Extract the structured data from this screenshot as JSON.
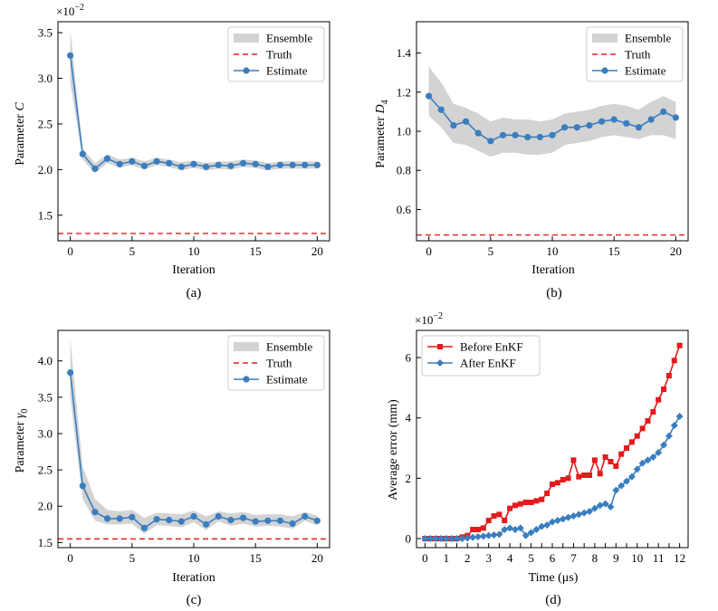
{
  "colors": {
    "estimate": "#3a7ebf",
    "ensemble": "#d3d3d3",
    "truth": "#e02020",
    "before": "#e41a1c",
    "after": "#3a7ebf"
  },
  "chart_data": [
    {
      "type": "line",
      "panel_label": "(a)",
      "xlabel": "Iteration",
      "ylabel_main": "Parameter ",
      "ylabel_sym": "C",
      "ylabel_sub": "",
      "scale_base": "×10",
      "scale_exp": "−2",
      "xlim": [
        -1,
        21
      ],
      "ylim": [
        1.22,
        3.62
      ],
      "xticks": [
        0,
        5,
        10,
        15,
        20
      ],
      "xtick_labels": [
        "0",
        "5",
        "10",
        "15",
        "20"
      ],
      "yticks": [
        1.5,
        2.0,
        2.5,
        3.0,
        3.5
      ],
      "ytick_labels": [
        "1.5",
        "2.0",
        "2.5",
        "3.0",
        "3.5"
      ],
      "legend": [
        "Ensemble",
        "Truth",
        "Estimate"
      ],
      "truth": 1.3,
      "x": [
        0,
        1,
        2,
        3,
        4,
        5,
        6,
        7,
        8,
        9,
        10,
        11,
        12,
        13,
        14,
        15,
        16,
        17,
        18,
        19,
        20
      ],
      "estimate": [
        3.25,
        2.17,
        2.01,
        2.12,
        2.06,
        2.09,
        2.04,
        2.09,
        2.07,
        2.03,
        2.06,
        2.03,
        2.05,
        2.04,
        2.07,
        2.06,
        2.03,
        2.05,
        2.05,
        2.05,
        2.05
      ],
      "ensemble_upper": [
        3.54,
        2.23,
        2.07,
        2.17,
        2.11,
        2.13,
        2.09,
        2.13,
        2.11,
        2.08,
        2.1,
        2.07,
        2.09,
        2.09,
        2.11,
        2.1,
        2.07,
        2.09,
        2.09,
        2.09,
        2.09
      ],
      "ensemble_lower": [
        2.95,
        2.11,
        1.96,
        2.07,
        2.02,
        2.05,
        2.0,
        2.05,
        2.03,
        1.99,
        2.02,
        1.99,
        2.01,
        2.0,
        2.03,
        2.02,
        1.99,
        2.01,
        2.01,
        2.01,
        2.01
      ]
    },
    {
      "type": "line",
      "panel_label": "(b)",
      "xlabel": "Iteration",
      "ylabel_main": "Parameter ",
      "ylabel_sym": "D",
      "ylabel_sub": "4",
      "scale_base": "",
      "scale_exp": "",
      "xlim": [
        -1,
        21
      ],
      "ylim": [
        0.44,
        1.56
      ],
      "xticks": [
        0,
        5,
        10,
        15,
        20
      ],
      "xtick_labels": [
        "0",
        "5",
        "10",
        "15",
        "20"
      ],
      "yticks": [
        0.6,
        0.8,
        1.0,
        1.2,
        1.4
      ],
      "ytick_labels": [
        "0.6",
        "0.8",
        "1.0",
        "1.2",
        "1.4"
      ],
      "legend": [
        "Ensemble",
        "Truth",
        "Estimate"
      ],
      "truth": 0.47,
      "x": [
        0,
        1,
        2,
        3,
        4,
        5,
        6,
        7,
        8,
        9,
        10,
        11,
        12,
        13,
        14,
        15,
        16,
        17,
        18,
        19,
        20
      ],
      "estimate": [
        1.18,
        1.11,
        1.03,
        1.05,
        0.99,
        0.95,
        0.98,
        0.98,
        0.97,
        0.97,
        0.98,
        1.02,
        1.02,
        1.03,
        1.05,
        1.06,
        1.04,
        1.02,
        1.06,
        1.1,
        1.07
      ],
      "ensemble_upper": [
        1.33,
        1.25,
        1.14,
        1.12,
        1.09,
        1.05,
        1.07,
        1.06,
        1.06,
        1.05,
        1.06,
        1.09,
        1.1,
        1.11,
        1.13,
        1.14,
        1.13,
        1.11,
        1.15,
        1.18,
        1.15
      ],
      "ensemble_lower": [
        1.08,
        1.02,
        0.94,
        0.93,
        0.9,
        0.87,
        0.89,
        0.89,
        0.88,
        0.88,
        0.89,
        0.93,
        0.94,
        0.95,
        0.97,
        0.98,
        0.97,
        0.96,
        0.98,
        0.98,
        0.96
      ]
    },
    {
      "type": "line",
      "panel_label": "(c)",
      "xlabel": "Iteration",
      "ylabel_main": "Parameter ",
      "ylabel_sym": "γ",
      "ylabel_sub": "0",
      "scale_base": "",
      "scale_exp": "",
      "xlim": [
        -1,
        21
      ],
      "ylim": [
        1.43,
        4.42
      ],
      "xticks": [
        0,
        5,
        10,
        15,
        20
      ],
      "xtick_labels": [
        "0",
        "5",
        "10",
        "15",
        "20"
      ],
      "yticks": [
        1.5,
        2.0,
        2.5,
        3.0,
        3.5,
        4.0
      ],
      "ytick_labels": [
        "1.5",
        "2.0",
        "2.5",
        "3.0",
        "3.5",
        "4.0"
      ],
      "legend": [
        "Ensemble",
        "Truth",
        "Estimate"
      ],
      "truth": 1.55,
      "x": [
        0,
        1,
        2,
        3,
        4,
        5,
        6,
        7,
        8,
        9,
        10,
        11,
        12,
        13,
        14,
        15,
        16,
        17,
        18,
        19,
        20
      ],
      "estimate": [
        3.84,
        2.28,
        1.92,
        1.83,
        1.83,
        1.85,
        1.7,
        1.82,
        1.81,
        1.79,
        1.86,
        1.75,
        1.86,
        1.81,
        1.84,
        1.79,
        1.8,
        1.8,
        1.76,
        1.86,
        1.8
      ],
      "ensemble_upper": [
        4.3,
        2.55,
        2.1,
        1.95,
        1.93,
        1.95,
        1.84,
        1.91,
        1.9,
        1.89,
        1.94,
        1.86,
        1.93,
        1.9,
        1.92,
        1.88,
        1.89,
        1.89,
        1.86,
        1.92,
        1.87
      ],
      "ensemble_lower": [
        3.5,
        2.1,
        1.8,
        1.75,
        1.75,
        1.76,
        1.62,
        1.74,
        1.73,
        1.71,
        1.78,
        1.67,
        1.79,
        1.73,
        1.76,
        1.72,
        1.73,
        1.72,
        1.69,
        1.8,
        1.73
      ]
    },
    {
      "type": "line",
      "panel_label": "(d)",
      "xlabel": "Time (μs)",
      "ylabel_main": "Average error (mm)",
      "ylabel_sym": "",
      "ylabel_sub": "",
      "scale_base": "×10",
      "scale_exp": "−2",
      "xlim": [
        -0.4,
        12.4
      ],
      "ylim": [
        -0.3,
        6.9
      ],
      "xticks": [
        0,
        0.5,
        1,
        1.5,
        2,
        2.5,
        3,
        3.5,
        4,
        4.5,
        5,
        5.5,
        6,
        6.5,
        7,
        7.5,
        8,
        8.5,
        9,
        9.5,
        10,
        10.5,
        11,
        11.5,
        12
      ],
      "xtick_labels": [
        "0",
        "",
        "1",
        "",
        "2",
        "",
        "3",
        "",
        "4",
        "",
        "5",
        "",
        "6",
        "",
        "7",
        "",
        "8",
        "",
        "9",
        "",
        "10",
        "",
        "11",
        "",
        "12"
      ],
      "yticks": [
        0,
        2,
        4,
        6
      ],
      "ytick_labels": [
        "0",
        "2",
        "4",
        "6"
      ],
      "legend": [
        "Before EnKF",
        "After EnKF"
      ],
      "series": [
        {
          "name": "Before EnKF",
          "x": [
            0,
            0.25,
            0.5,
            0.75,
            1,
            1.25,
            1.5,
            1.75,
            2,
            2.25,
            2.5,
            2.75,
            3,
            3.25,
            3.5,
            3.75,
            4,
            4.25,
            4.5,
            4.75,
            5,
            5.25,
            5.5,
            5.75,
            6,
            6.25,
            6.5,
            6.75,
            7,
            7.25,
            7.5,
            7.75,
            8,
            8.25,
            8.5,
            8.75,
            9,
            9.25,
            9.5,
            9.75,
            10,
            10.25,
            10.5,
            10.75,
            11,
            11.25,
            11.5,
            11.75,
            12
          ],
          "values": [
            0,
            0,
            0,
            0,
            0,
            0,
            0,
            0.05,
            0.1,
            0.3,
            0.3,
            0.35,
            0.6,
            0.75,
            0.8,
            0.6,
            1.0,
            1.1,
            1.15,
            1.2,
            1.2,
            1.25,
            1.3,
            1.5,
            1.8,
            1.85,
            1.95,
            2.0,
            2.6,
            2.05,
            2.1,
            2.1,
            2.6,
            2.15,
            2.7,
            2.55,
            2.4,
            2.8,
            3.0,
            3.2,
            3.4,
            3.65,
            3.9,
            4.2,
            4.6,
            4.95,
            5.4,
            5.9,
            6.4
          ]
        },
        {
          "name": "After EnKF",
          "x": [
            0,
            0.25,
            0.5,
            0.75,
            1,
            1.25,
            1.5,
            1.75,
            2,
            2.25,
            2.5,
            2.75,
            3,
            3.25,
            3.5,
            3.75,
            4,
            4.25,
            4.5,
            4.75,
            5,
            5.25,
            5.5,
            5.75,
            6,
            6.25,
            6.5,
            6.75,
            7,
            7.25,
            7.5,
            7.75,
            8,
            8.25,
            8.5,
            8.75,
            9,
            9.25,
            9.5,
            9.75,
            10,
            10.25,
            10.5,
            10.75,
            11,
            11.25,
            11.5,
            11.75,
            12
          ],
          "values": [
            0,
            0,
            0,
            0,
            0,
            0,
            0,
            0,
            0.02,
            0.04,
            0.06,
            0.08,
            0.1,
            0.12,
            0.14,
            0.3,
            0.35,
            0.3,
            0.35,
            0.1,
            0.2,
            0.3,
            0.4,
            0.45,
            0.55,
            0.6,
            0.65,
            0.7,
            0.75,
            0.8,
            0.85,
            0.9,
            1.0,
            1.1,
            1.15,
            1.05,
            1.6,
            1.75,
            1.9,
            2.05,
            2.3,
            2.5,
            2.6,
            2.7,
            2.85,
            3.1,
            3.4,
            3.75,
            4.05
          ]
        }
      ]
    }
  ]
}
